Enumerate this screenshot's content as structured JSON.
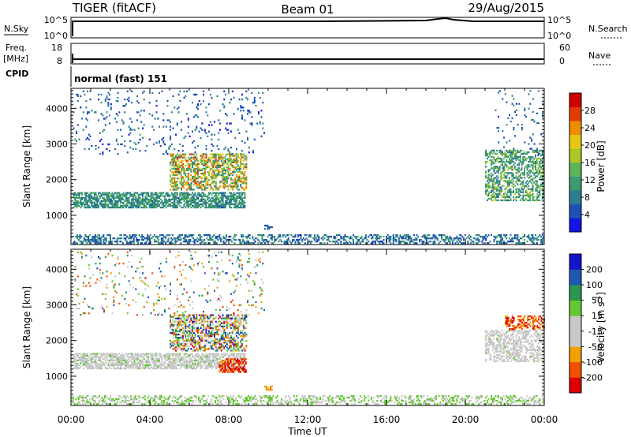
{
  "header": {
    "station": "TIGER (fitACF)",
    "beam": "Beam 01",
    "date": "29/Aug/2015"
  },
  "noise_panel": {
    "left_label": "N.Sky",
    "right_label": "N.Search",
    "left_ticks": [
      "10^5",
      "10^0"
    ],
    "right_ticks": [
      "10^5",
      "10^0"
    ]
  },
  "freq_panel": {
    "left_label_top": "Freq.",
    "left_label_bottom": "[MHz]",
    "right_label": "Nave",
    "left_ticks": [
      "18",
      "8"
    ],
    "right_ticks": [
      "60",
      "0"
    ]
  },
  "cpid_panel": {
    "label": "CPID",
    "value": "normal (fast) 151"
  },
  "chart_data": [
    {
      "type": "heatmap",
      "name": "power",
      "ylabel": "Slant Range [km]",
      "ylim": [
        180,
        4560
      ],
      "yticks": [
        "1000",
        "2000",
        "3000",
        "4000"
      ],
      "xlim": [
        0,
        24
      ],
      "colorbar": {
        "label": "Power [dB]",
        "ticks": [
          "4",
          "8",
          "12",
          "16",
          "20",
          "24",
          "28"
        ],
        "range": [
          0,
          32
        ],
        "colors": [
          "#1414e6",
          "#1e50b4",
          "#2c7d91",
          "#3c9a6e",
          "#5fb45a",
          "#aac828",
          "#e6c814",
          "#f08c00",
          "#e03c00",
          "#cc0000"
        ]
      },
      "echo_regions": [
        {
          "t0": 0.1,
          "t1": 8.8,
          "r0": 1200,
          "r1": 1650,
          "density": 0.7,
          "vmin": 6,
          "vmax": 14
        },
        {
          "t0": 5.0,
          "t1": 8.9,
          "r0": 1700,
          "r1": 2700,
          "density": 0.55,
          "vmin": 8,
          "vmax": 28
        },
        {
          "t0": 0.1,
          "t1": 9.8,
          "r0": 2700,
          "r1": 4500,
          "density": 0.06,
          "vmin": 2,
          "vmax": 10
        },
        {
          "t0": 21.0,
          "t1": 24.0,
          "r0": 1400,
          "r1": 2800,
          "density": 0.5,
          "vmin": 6,
          "vmax": 18
        },
        {
          "t0": 21.5,
          "t1": 24.0,
          "r0": 2800,
          "r1": 4500,
          "density": 0.05,
          "vmin": 3,
          "vmax": 10
        },
        {
          "t0": 0.0,
          "t1": 24.0,
          "r0": 200,
          "r1": 450,
          "density": 0.45,
          "vmin": 3,
          "vmax": 12
        },
        {
          "t0": 9.8,
          "t1": 10.2,
          "r0": 600,
          "r1": 700,
          "density": 0.8,
          "vmin": 4,
          "vmax": 8
        }
      ]
    },
    {
      "type": "heatmap",
      "name": "velocity",
      "ylabel": "Slant Range [km]",
      "ylim": [
        180,
        4560
      ],
      "yticks": [
        "1000",
        "2000",
        "3000",
        "4000"
      ],
      "xlim": [
        0,
        24
      ],
      "xlabel": "Time UT",
      "xticks": [
        "00:00",
        "04:00",
        "08:00",
        "12:00",
        "16:00",
        "20:00",
        "00:00"
      ],
      "colorbar": {
        "label": "Velocity [m s",
        "label_sup": "-1",
        "ticks": [
          "200",
          "100",
          "50",
          "15",
          "-15",
          "-50",
          "-100",
          "-200"
        ],
        "range": [
          -250,
          250
        ],
        "colors": [
          "#dc0000",
          "#f05000",
          "#f0a000",
          "#c8c8c8",
          "#c8c8c8",
          "#64c832",
          "#2c9650",
          "#1e5ab4",
          "#1414c8"
        ]
      },
      "echo_regions": [
        {
          "t0": 0.1,
          "t1": 8.8,
          "r0": 1200,
          "r1": 1650,
          "density": 0.7,
          "vmin": -60,
          "vmax": 40
        },
        {
          "t0": 5.0,
          "t1": 8.9,
          "r0": 1700,
          "r1": 2700,
          "density": 0.55,
          "vmin": -220,
          "vmax": 220
        },
        {
          "t0": 7.5,
          "t1": 8.9,
          "r0": 1100,
          "r1": 1500,
          "density": 0.6,
          "vmin": -250,
          "vmax": -120
        },
        {
          "t0": 0.1,
          "t1": 9.8,
          "r0": 2700,
          "r1": 4500,
          "density": 0.06,
          "vmin": -200,
          "vmax": 200
        },
        {
          "t0": 21.0,
          "t1": 24.0,
          "r0": 1400,
          "r1": 2300,
          "density": 0.5,
          "vmin": -30,
          "vmax": 30
        },
        {
          "t0": 22.0,
          "t1": 24.0,
          "r0": 2300,
          "r1": 2700,
          "density": 0.45,
          "vmin": -240,
          "vmax": -100
        },
        {
          "t0": 0.0,
          "t1": 24.0,
          "r0": 200,
          "r1": 450,
          "density": 0.4,
          "vmin": -20,
          "vmax": 80
        },
        {
          "t0": 9.8,
          "t1": 10.2,
          "r0": 600,
          "r1": 700,
          "density": 0.8,
          "vmin": -150,
          "vmax": -80
        }
      ]
    }
  ]
}
